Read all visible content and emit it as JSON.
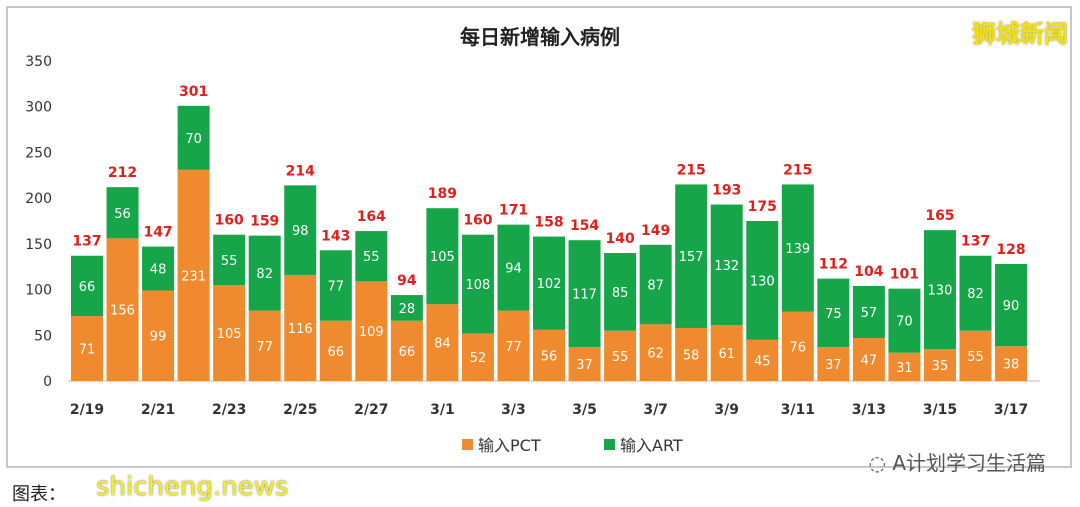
{
  "brand": "狮城新闻",
  "watermark": "shicheng.news",
  "caption": "图表：",
  "account": "A计划学习生活篇",
  "account_icon": "wechat-icon",
  "chart_data": {
    "type": "bar",
    "stacked": true,
    "title": "每日新增输入病例",
    "categories": [
      "2/19",
      "2/20",
      "2/21",
      "2/22",
      "2/23",
      "2/24",
      "2/25",
      "2/26",
      "2/27",
      "2/28",
      "3/1",
      "3/2",
      "3/3",
      "3/4",
      "3/5",
      "3/6",
      "3/7",
      "3/8",
      "3/9",
      "3/10",
      "3/11",
      "3/12",
      "3/13",
      "3/14",
      "3/15",
      "3/16",
      "3/17"
    ],
    "x_tick_labels": [
      "2/19",
      "2/21",
      "2/23",
      "2/25",
      "2/27",
      "3/1",
      "3/3",
      "3/5",
      "3/7",
      "3/9",
      "3/11",
      "3/13",
      "3/15",
      "3/17"
    ],
    "series": [
      {
        "name": "输入PCT",
        "color": "#ef8a2f",
        "values": [
          71,
          156,
          99,
          231,
          105,
          77,
          116,
          66,
          109,
          66,
          84,
          52,
          77,
          56,
          37,
          55,
          62,
          58,
          61,
          45,
          76,
          37,
          47,
          31,
          35,
          55,
          38
        ]
      },
      {
        "name": "输入ART",
        "color": "#17a54a",
        "values": [
          66,
          56,
          48,
          70,
          55,
          82,
          98,
          77,
          55,
          28,
          105,
          108,
          94,
          102,
          117,
          85,
          87,
          157,
          132,
          130,
          139,
          75,
          57,
          70,
          130,
          82,
          90
        ]
      }
    ],
    "totals": [
      137,
      212,
      147,
      301,
      160,
      159,
      214,
      143,
      164,
      94,
      189,
      160,
      171,
      158,
      154,
      140,
      149,
      215,
      193,
      175,
      215,
      112,
      104,
      101,
      165,
      137,
      128
    ],
    "total_label_color": "#e0201c",
    "ylim": [
      0,
      350
    ],
    "yticks": [
      0,
      50,
      100,
      150,
      200,
      250,
      300,
      350
    ],
    "grid": false,
    "legend": "bottom"
  }
}
